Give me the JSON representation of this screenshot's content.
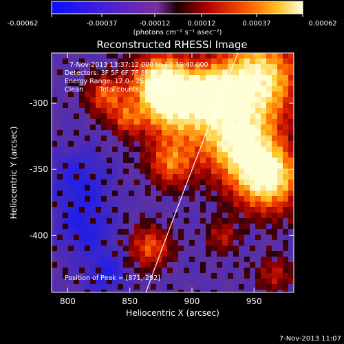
{
  "colorbar": {
    "tick_labels": [
      "-0.00062",
      "-0.00037",
      "-0.00012",
      "0.00012",
      "0.00037",
      "0.00062"
    ],
    "units_label": "(photons cm⁻² s⁻¹ asec⁻²)"
  },
  "plot": {
    "title": "Reconstructed RHESSI Image",
    "annotations": {
      "time_range": "7-Nov-2013 13:37:12.000 to 13:39:40.000",
      "detectors": "Detectors: 3F 5F 6F 7F 8F 9F, Att 0",
      "energy_range": "Energy Range: 12.0 - 25.0 keV",
      "method": "Clean",
      "total_counts": "Total counts: 7.11E+03",
      "peak_position": "Position of Peak = [871,-292]"
    }
  },
  "axes": {
    "x": {
      "label": "Heliocentric X (arcsec)",
      "range": [
        787,
        982
      ],
      "ticks": [
        "800",
        "850",
        "900",
        "950"
      ],
      "tick_values": [
        800,
        850,
        900,
        950
      ]
    },
    "y": {
      "label": "Heliocentric Y (arcsec)",
      "range": [
        -443,
        -262
      ],
      "ticks": [
        "-300",
        "-350",
        "-400"
      ],
      "tick_values": [
        -300,
        -350,
        -400
      ]
    }
  },
  "footer": {
    "timestamp": "7-Nov-2013 11:07"
  },
  "colors": {
    "background": "#000000",
    "axis": "#ffffff",
    "limb": "#ffffff"
  }
}
